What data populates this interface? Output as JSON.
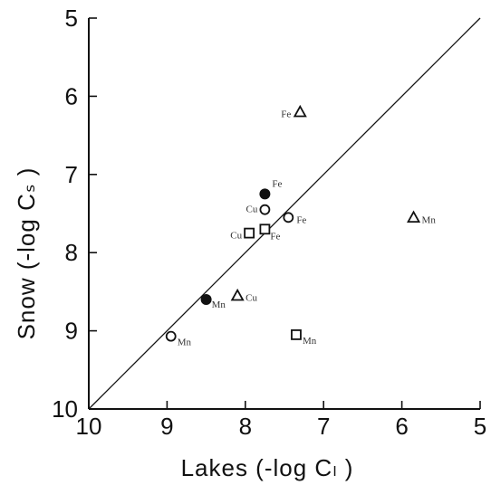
{
  "chart_data": {
    "type": "scatter",
    "xlabel": "Lakes (-log Cₗ )",
    "ylabel": "Snow (-log Cₛ )",
    "xlim": [
      10,
      5
    ],
    "ylim": [
      10,
      5
    ],
    "x_ticks": [
      "10",
      "9",
      "8",
      "7",
      "6",
      "5"
    ],
    "y_ticks": [
      "5",
      "6",
      "7",
      "8",
      "9",
      "10"
    ],
    "reference_line": "1:1",
    "grid": false,
    "legend": "none",
    "points": [
      {
        "x": 7.3,
        "y": 6.2,
        "marker": "triangle",
        "label": "Fe"
      },
      {
        "x": 5.85,
        "y": 7.55,
        "marker": "triangle",
        "label": "Mn"
      },
      {
        "x": 8.1,
        "y": 8.55,
        "marker": "triangle",
        "label": "Cu"
      },
      {
        "x": 7.75,
        "y": 7.25,
        "marker": "filled-circle",
        "label": "Fe"
      },
      {
        "x": 8.5,
        "y": 8.6,
        "marker": "filled-circle",
        "label": "Mn"
      },
      {
        "x": 7.75,
        "y": 7.45,
        "marker": "circle",
        "label": "Cu"
      },
      {
        "x": 7.45,
        "y": 7.55,
        "marker": "circle",
        "label": "Fe"
      },
      {
        "x": 8.95,
        "y": 9.07,
        "marker": "circle",
        "label": "Mn"
      },
      {
        "x": 7.95,
        "y": 7.75,
        "marker": "square",
        "label": "Cu"
      },
      {
        "x": 7.75,
        "y": 7.7,
        "marker": "square",
        "label": "Fe"
      },
      {
        "x": 7.35,
        "y": 9.05,
        "marker": "square",
        "label": "Mn"
      }
    ]
  }
}
